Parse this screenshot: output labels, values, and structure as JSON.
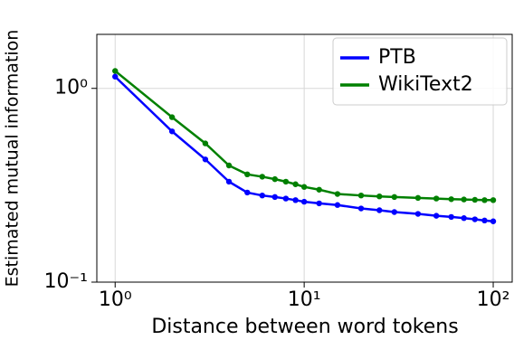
{
  "chart_data": {
    "type": "line",
    "x_label": "Distance between word tokens",
    "y_label": "Estimated mutual information",
    "x": [
      1,
      2,
      3,
      4,
      5,
      6,
      7,
      8,
      9,
      10,
      12,
      15,
      20,
      25,
      30,
      40,
      50,
      60,
      70,
      80,
      90,
      100
    ],
    "series": [
      {
        "name": "PTB",
        "color": "#0000ff",
        "values": [
          1.15,
          0.6,
          0.43,
          0.33,
          0.29,
          0.28,
          0.275,
          0.27,
          0.265,
          0.26,
          0.255,
          0.25,
          0.24,
          0.235,
          0.23,
          0.225,
          0.22,
          0.217,
          0.214,
          0.211,
          0.208,
          0.206
        ]
      },
      {
        "name": "WikiText2",
        "color": "#008000",
        "values": [
          1.23,
          0.71,
          0.52,
          0.4,
          0.36,
          0.35,
          0.34,
          0.33,
          0.32,
          0.31,
          0.3,
          0.285,
          0.28,
          0.277,
          0.275,
          0.272,
          0.27,
          0.268,
          0.267,
          0.266,
          0.265,
          0.265
        ]
      }
    ],
    "xscale": "log",
    "yscale": "log",
    "xlim": [
      0.8,
      126
    ],
    "ylim": [
      0.1,
      1.9
    ],
    "xticks": [
      {
        "value": 1,
        "label": "10⁰"
      },
      {
        "value": 10,
        "label": "10¹"
      },
      {
        "value": 100,
        "label": "10²"
      }
    ],
    "yticks": [
      {
        "value": 0.1,
        "label": "10⁻¹"
      },
      {
        "value": 1,
        "label": "10⁰"
      }
    ],
    "grid": true,
    "legend_loc": "upper right"
  }
}
